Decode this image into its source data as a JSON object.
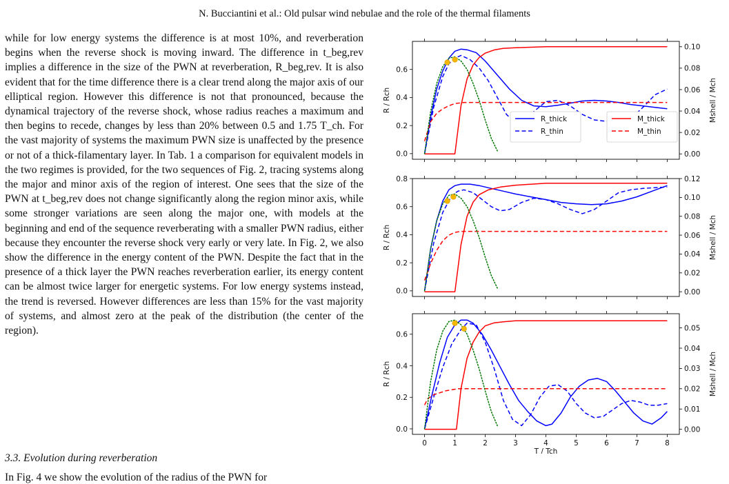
{
  "header": "N. Bucciantini et al.: Old pulsar wind nebulae and the role of the thermal filaments",
  "body": {
    "paragraph": "while for low energy systems the difference is at most 10%, and reverberation begins when the reverse shock is moving inward. The difference in t_beg,rev implies a difference in the size of the PWN at reverberation, R_beg,rev. It is also evident that for the time difference there is a clear trend along the major axis of our elliptical region. However this difference is not that pronounced, because the dynamical trajectory of the reverse shock, whose radius reaches a maximum and then begins to recede, changes by less than 20% between 0.5 and 1.75 T_ch. For the vast majority of systems the maximum PWN size is unaffected by the presence or not of a thick-filamentary layer. In Tab. 1 a comparison for equivalent models in the two regimes is provided, for the two sequences of Fig. 2, tracing systems along the major and minor axis of the region of interest. One sees that the size of the PWN at t_beg,rev does not change significantly along the region minor axis, while some stronger variations are seen along the major one, with models at the beginning and end of the sequence reverberating with a smaller PWN radius, either because they encounter the reverse shock very early or very late. In Fig. 2, we also show the difference in the energy content of the PWN. Despite the fact that in the presence of a thick layer the PWN reaches reverberation earlier, its energy content can be almost twice larger for energetic systems. For low energy systems instead, the trend is reversed. However differences are less than 15% for the vast majority of systems, and almost zero at the peak of the distribution (the center of the region)."
  },
  "section_title": "3.3. Evolution during reverberation",
  "cut_line": "In Fig. 4 we show the evolution of the radius of the PWN for",
  "colors": {
    "thick": "#0000ff",
    "red": "#ff0000",
    "dotted": "#007700",
    "marker": "#f5b700"
  },
  "chart_data": [
    {
      "type": "line",
      "title": "",
      "xlabel": "T / Tch",
      "ylabel_left": "R / Rch",
      "ylabel_right": "Mshell / Mch",
      "xlim": [
        -0.4,
        8.4
      ],
      "ylim_left": [
        -0.04,
        0.8
      ],
      "ylim_right": [
        -0.005,
        0.105
      ],
      "xticks": [
        0,
        1,
        2,
        3,
        4,
        5,
        6,
        7,
        8
      ],
      "yticks_left": [
        "0.0",
        "0.2",
        "0.4",
        "0.6"
      ],
      "yticks_right": [
        "0.00",
        "0.02",
        "0.04",
        "0.06",
        "0.08",
        "0.10"
      ],
      "legend_left": [
        "R_thick",
        "R_thin"
      ],
      "legend_right": [
        "M_thick",
        "M_thin"
      ],
      "series": [
        {
          "name": "R_thick",
          "axis": "left",
          "style": "solid",
          "color": "blue",
          "x": [
            0,
            0.2,
            0.4,
            0.6,
            0.8,
            1.0,
            1.2,
            1.4,
            1.7,
            2.0,
            2.4,
            2.8,
            3.2,
            3.6,
            4.0,
            4.4,
            4.8,
            5.2,
            5.6,
            6.0,
            6.4,
            6.8,
            7.2,
            7.6,
            8.0
          ],
          "y": [
            0,
            0.26,
            0.46,
            0.59,
            0.68,
            0.73,
            0.745,
            0.74,
            0.72,
            0.66,
            0.56,
            0.46,
            0.38,
            0.34,
            0.335,
            0.345,
            0.36,
            0.375,
            0.38,
            0.375,
            0.365,
            0.35,
            0.34,
            0.33,
            0.32
          ]
        },
        {
          "name": "R_thin",
          "axis": "left",
          "style": "dashed",
          "color": "blue",
          "x": [
            0,
            0.3,
            0.6,
            0.8,
            1.0,
            1.2,
            1.5,
            1.8,
            2.1,
            2.4,
            2.7,
            3.0,
            3.3,
            3.6,
            4.0,
            4.4,
            4.8,
            5.2,
            5.6,
            6.0,
            6.4,
            6.8,
            7.2,
            7.6,
            8.0
          ],
          "y": [
            0,
            0.33,
            0.55,
            0.64,
            0.68,
            0.7,
            0.67,
            0.61,
            0.52,
            0.4,
            0.28,
            0.22,
            0.23,
            0.3,
            0.37,
            0.38,
            0.34,
            0.28,
            0.24,
            0.23,
            0.22,
            0.25,
            0.33,
            0.42,
            0.46
          ]
        },
        {
          "name": "M_thick",
          "axis": "right",
          "style": "solid",
          "color": "red",
          "x": [
            0,
            0.8,
            1.0,
            1.2,
            1.4,
            1.6,
            1.8,
            2.0,
            2.3,
            2.6,
            3.0,
            3.5,
            4.0,
            5.0,
            6.0,
            7.0,
            8.0
          ],
          "y": [
            0,
            0,
            0,
            0.045,
            0.07,
            0.083,
            0.09,
            0.094,
            0.097,
            0.0985,
            0.099,
            0.0995,
            0.1,
            0.1,
            0.1,
            0.1,
            0.1
          ]
        },
        {
          "name": "M_thin",
          "axis": "right",
          "style": "dashed",
          "color": "red",
          "x": [
            0,
            0.2,
            0.4,
            0.6,
            0.8,
            1.0,
            1.3,
            1.6,
            2.0,
            3.0,
            4.0,
            5.0,
            6.0,
            7.0,
            8.0
          ],
          "y": [
            0.012,
            0.03,
            0.038,
            0.042,
            0.045,
            0.047,
            0.048,
            0.048,
            0.048,
            0.048,
            0.048,
            0.048,
            0.048,
            0.048,
            0.048
          ]
        },
        {
          "name": "",
          "axis": "left",
          "style": "dotted",
          "color": "green",
          "x": [
            0,
            0.2,
            0.4,
            0.6,
            0.8,
            1.0,
            1.2,
            1.4,
            1.6,
            1.8,
            2.0,
            2.2,
            2.4
          ],
          "y": [
            0,
            0.3,
            0.5,
            0.62,
            0.68,
            0.69,
            0.66,
            0.6,
            0.5,
            0.38,
            0.24,
            0.11,
            0.02
          ]
        }
      ],
      "points": [
        {
          "x": 0.75,
          "y": 0.65
        },
        {
          "x": 1.0,
          "y": 0.67
        }
      ]
    },
    {
      "type": "line",
      "title": "",
      "xlabel": "",
      "ylabel_left": "R / Rch",
      "ylabel_right": "Mshell / Mch",
      "xlim": [
        -0.4,
        8.4
      ],
      "ylim_left": [
        -0.04,
        0.8
      ],
      "ylim_right": [
        -0.005,
        0.12
      ],
      "xticks": [
        0,
        1,
        2,
        3,
        4,
        5,
        6,
        7,
        8
      ],
      "yticks_left": [
        "0.0",
        "0.2",
        "0.4",
        "0.6",
        "0.8"
      ],
      "yticks_right": [
        "0.00",
        "0.02",
        "0.04",
        "0.06",
        "0.08",
        "0.10",
        "0.12"
      ],
      "series": [
        {
          "name": "R_thick",
          "axis": "left",
          "style": "solid",
          "color": "blue",
          "x": [
            0,
            0.2,
            0.4,
            0.6,
            0.8,
            1.0,
            1.2,
            1.5,
            1.8,
            2.2,
            2.6,
            3.0,
            3.5,
            4.0,
            4.5,
            5.0,
            5.5,
            6.0,
            6.5,
            7.0,
            7.5,
            8.0
          ],
          "y": [
            0,
            0.3,
            0.5,
            0.64,
            0.72,
            0.75,
            0.76,
            0.76,
            0.75,
            0.73,
            0.71,
            0.69,
            0.67,
            0.65,
            0.63,
            0.62,
            0.615,
            0.62,
            0.64,
            0.67,
            0.71,
            0.75
          ]
        },
        {
          "name": "R_thin",
          "axis": "left",
          "style": "dashed",
          "color": "blue",
          "x": [
            0,
            0.3,
            0.6,
            0.9,
            1.1,
            1.3,
            1.6,
            1.9,
            2.2,
            2.5,
            2.8,
            3.2,
            3.6,
            4.0,
            4.4,
            4.8,
            5.2,
            5.6,
            6.0,
            6.4,
            6.8,
            7.2,
            7.6,
            8.0
          ],
          "y": [
            0,
            0.34,
            0.56,
            0.68,
            0.71,
            0.72,
            0.7,
            0.65,
            0.6,
            0.57,
            0.58,
            0.63,
            0.66,
            0.65,
            0.62,
            0.58,
            0.55,
            0.58,
            0.64,
            0.7,
            0.72,
            0.73,
            0.735,
            0.74
          ]
        },
        {
          "name": "M_thick",
          "axis": "right",
          "style": "solid",
          "color": "red",
          "x": [
            0,
            0.8,
            1.0,
            1.2,
            1.4,
            1.6,
            1.8,
            2.1,
            2.5,
            3.0,
            3.5,
            4.0,
            5.0,
            6.0,
            7.0,
            8.0
          ],
          "y": [
            0,
            0,
            0,
            0.05,
            0.08,
            0.095,
            0.103,
            0.108,
            0.111,
            0.113,
            0.114,
            0.115,
            0.115,
            0.115,
            0.115,
            0.115
          ]
        },
        {
          "name": "M_thin",
          "axis": "right",
          "style": "dashed",
          "color": "red",
          "x": [
            0,
            0.2,
            0.4,
            0.6,
            0.8,
            1.0,
            1.2,
            1.5,
            2.0,
            3.0,
            4.0,
            5.0,
            6.0,
            7.0,
            8.0
          ],
          "y": [
            0.012,
            0.03,
            0.044,
            0.054,
            0.06,
            0.063,
            0.064,
            0.064,
            0.064,
            0.064,
            0.064,
            0.064,
            0.064,
            0.064,
            0.064
          ]
        },
        {
          "name": "",
          "axis": "left",
          "style": "dotted",
          "color": "green",
          "x": [
            0,
            0.2,
            0.4,
            0.6,
            0.8,
            1.0,
            1.2,
            1.4,
            1.6,
            1.8,
            2.0,
            2.2,
            2.4
          ],
          "y": [
            0,
            0.3,
            0.5,
            0.62,
            0.68,
            0.69,
            0.66,
            0.6,
            0.5,
            0.38,
            0.24,
            0.11,
            0.02
          ]
        }
      ],
      "points": [
        {
          "x": 0.75,
          "y": 0.64
        },
        {
          "x": 0.95,
          "y": 0.67
        }
      ]
    },
    {
      "type": "line",
      "title": "",
      "xlabel": "T / Tch",
      "ylabel_left": "R / Rch",
      "ylabel_right": "Mshell / Mch",
      "xlim": [
        -0.4,
        8.4
      ],
      "ylim_left": [
        -0.035,
        0.73
      ],
      "ylim_right": [
        -0.0025,
        0.057
      ],
      "xticks": [
        0,
        1,
        2,
        3,
        4,
        5,
        6,
        7,
        8
      ],
      "yticks_left": [
        "0.0",
        "0.2",
        "0.4",
        "0.6"
      ],
      "yticks_right": [
        "0.00",
        "0.01",
        "0.02",
        "0.03",
        "0.04",
        "0.05"
      ],
      "series": [
        {
          "name": "R_thick",
          "axis": "left",
          "style": "solid",
          "color": "blue",
          "x": [
            0,
            0.25,
            0.5,
            0.75,
            1.0,
            1.2,
            1.4,
            1.6,
            1.9,
            2.2,
            2.5,
            2.8,
            3.1,
            3.4,
            3.7,
            4.0,
            4.2,
            4.5,
            4.8,
            5.1,
            5.4,
            5.7,
            6.0,
            6.3,
            6.6,
            6.9,
            7.2,
            7.5,
            7.8,
            8.0
          ],
          "y": [
            0,
            0.22,
            0.42,
            0.58,
            0.66,
            0.69,
            0.69,
            0.67,
            0.6,
            0.5,
            0.39,
            0.28,
            0.18,
            0.11,
            0.05,
            0.02,
            0.03,
            0.1,
            0.2,
            0.27,
            0.31,
            0.32,
            0.3,
            0.24,
            0.17,
            0.1,
            0.05,
            0.03,
            0.07,
            0.11
          ]
        },
        {
          "name": "R_thin",
          "axis": "left",
          "style": "dashed",
          "color": "blue",
          "x": [
            0,
            0.3,
            0.6,
            0.9,
            1.2,
            1.4,
            1.7,
            2.0,
            2.3,
            2.6,
            2.9,
            3.2,
            3.5,
            3.8,
            4.1,
            4.4,
            4.7,
            5.0,
            5.3,
            5.6,
            5.9,
            6.2,
            6.5,
            6.8,
            7.1,
            7.4,
            7.7,
            8.0
          ],
          "y": [
            0,
            0.2,
            0.39,
            0.54,
            0.63,
            0.67,
            0.66,
            0.55,
            0.38,
            0.18,
            0.06,
            0.02,
            0.09,
            0.2,
            0.27,
            0.28,
            0.24,
            0.16,
            0.1,
            0.07,
            0.08,
            0.12,
            0.16,
            0.18,
            0.17,
            0.15,
            0.15,
            0.16
          ]
        },
        {
          "name": "M_thick",
          "axis": "right",
          "style": "solid",
          "color": "red",
          "x": [
            0,
            0.9,
            1.05,
            1.2,
            1.4,
            1.6,
            1.8,
            2.0,
            2.3,
            2.6,
            3.0,
            3.5,
            4.0,
            5.0,
            6.0,
            7.0,
            8.0
          ],
          "y": [
            0,
            0,
            0,
            0.02,
            0.035,
            0.043,
            0.048,
            0.051,
            0.0525,
            0.053,
            0.0535,
            0.0535,
            0.0535,
            0.0535,
            0.0535,
            0.0535,
            0.0535
          ]
        },
        {
          "name": "M_thin",
          "axis": "right",
          "style": "dashed",
          "color": "red",
          "x": [
            0,
            0.1,
            0.3,
            0.5,
            0.7,
            0.9,
            1.1,
            1.5,
            2.0,
            3.0,
            4.0,
            5.0,
            6.0,
            7.0,
            8.0
          ],
          "y": [
            0.012,
            0.015,
            0.017,
            0.018,
            0.019,
            0.0195,
            0.02,
            0.02,
            0.02,
            0.02,
            0.02,
            0.02,
            0.02,
            0.02,
            0.02
          ]
        },
        {
          "name": "",
          "axis": "left",
          "style": "dotted",
          "color": "green",
          "x": [
            0,
            0.2,
            0.4,
            0.6,
            0.8,
            1.0,
            1.2,
            1.4,
            1.6,
            1.8,
            2.0,
            2.2,
            2.4
          ],
          "y": [
            0,
            0.3,
            0.5,
            0.62,
            0.68,
            0.69,
            0.66,
            0.6,
            0.5,
            0.38,
            0.24,
            0.11,
            0.02
          ]
        }
      ],
      "points": [
        {
          "x": 1.0,
          "y": 0.67
        },
        {
          "x": 1.3,
          "y": 0.635
        }
      ]
    }
  ]
}
